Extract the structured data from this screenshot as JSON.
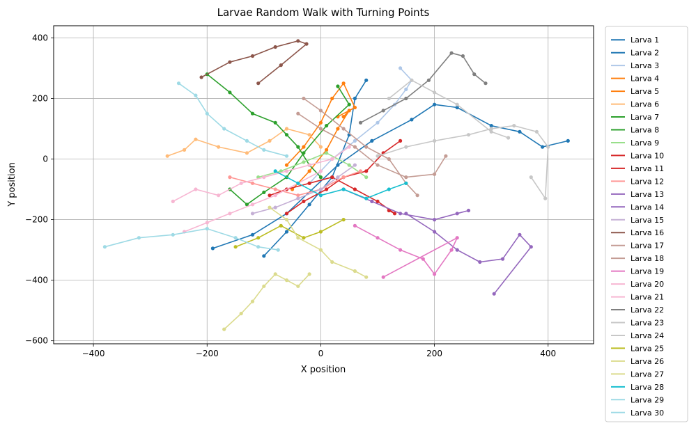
{
  "chart_data": {
    "type": "line",
    "title": "Larvae Random Walk with Turning Points",
    "xlabel": "X position",
    "ylabel": "Y position",
    "xlim": [
      -470,
      480
    ],
    "ylim": [
      -610,
      440
    ],
    "xticks": [
      -400,
      -200,
      0,
      200,
      400
    ],
    "yticks": [
      -600,
      -400,
      -200,
      0,
      200,
      400
    ],
    "xtick_labels": [
      "−400",
      "−200",
      "0",
      "200",
      "400"
    ],
    "ytick_labels": [
      "−600",
      "−400",
      "−200",
      "0",
      "200",
      "400"
    ],
    "grid": true,
    "legend_position": "outside-right",
    "series": [
      {
        "name": "Larva 1",
        "color": "#1f77b4",
        "x": [
          -190,
          -120,
          -60,
          30,
          90,
          160,
          200,
          240,
          300,
          350,
          390,
          435
        ],
        "y": [
          -295,
          -250,
          -180,
          -20,
          60,
          130,
          180,
          170,
          110,
          90,
          40,
          60
        ]
      },
      {
        "name": "Larva 2",
        "color": "#1f77b4",
        "x": [
          -100,
          -60,
          -20,
          20,
          50,
          60,
          80
        ],
        "y": [
          -320,
          -240,
          -150,
          -60,
          80,
          200,
          260
        ]
      },
      {
        "name": "Larva 3",
        "color": "#aec7e8",
        "x": [
          -20,
          20,
          60,
          100,
          130,
          150,
          160,
          140
        ],
        "y": [
          -80,
          0,
          60,
          120,
          180,
          230,
          260,
          300
        ]
      },
      {
        "name": "Larva 4",
        "color": "#ff7f0e",
        "x": [
          -60,
          -30,
          0,
          20,
          40,
          60,
          30
        ],
        "y": [
          -20,
          40,
          120,
          200,
          250,
          170,
          140
        ]
      },
      {
        "name": "Larva 5",
        "color": "#ff7f0e",
        "x": [
          -50,
          -20,
          10,
          30,
          50,
          40
        ],
        "y": [
          -100,
          -40,
          30,
          100,
          160,
          140
        ]
      },
      {
        "name": "Larva 6",
        "color": "#ffbb78",
        "x": [
          -270,
          -240,
          -220,
          -180,
          -130,
          -90,
          -60,
          -20,
          0
        ],
        "y": [
          10,
          30,
          65,
          40,
          20,
          60,
          100,
          80,
          40
        ]
      },
      {
        "name": "Larva 7",
        "color": "#2ca02c",
        "x": [
          -200,
          -160,
          -120,
          -80,
          -60,
          -40,
          -20,
          0
        ],
        "y": [
          280,
          220,
          150,
          120,
          80,
          40,
          -20,
          -60
        ]
      },
      {
        "name": "Larva 8",
        "color": "#2ca02c",
        "x": [
          -160,
          -130,
          -100,
          -60,
          -30,
          10,
          50,
          30
        ],
        "y": [
          -100,
          -150,
          -110,
          -60,
          20,
          110,
          180,
          240
        ]
      },
      {
        "name": "Larva 9",
        "color": "#98df8a",
        "x": [
          -110,
          -70,
          -30,
          10,
          50,
          80
        ],
        "y": [
          -60,
          -40,
          -10,
          20,
          -20,
          -60
        ]
      },
      {
        "name": "Larva 10",
        "color": "#d62728",
        "x": [
          -90,
          -60,
          -20,
          20,
          60,
          100,
          130,
          120
        ],
        "y": [
          -120,
          -100,
          -80,
          -60,
          -100,
          -140,
          -180,
          -170
        ]
      },
      {
        "name": "Larva 11",
        "color": "#d62728",
        "x": [
          -60,
          -30,
          10,
          40,
          80,
          110,
          140
        ],
        "y": [
          -180,
          -140,
          -100,
          -60,
          -40,
          20,
          60
        ]
      },
      {
        "name": "Larva 12",
        "color": "#ff9896",
        "x": [
          -160,
          -120,
          -80,
          -40,
          0,
          40,
          70
        ],
        "y": [
          -60,
          -80,
          -100,
          -120,
          -100,
          -60,
          -40
        ]
      },
      {
        "name": "Larva 13",
        "color": "#9467bd",
        "x": [
          40,
          90,
          140,
          200,
          240,
          260
        ],
        "y": [
          -100,
          -140,
          -180,
          -200,
          -180,
          -170
        ]
      },
      {
        "name": "Larva 14",
        "color": "#9467bd",
        "x": [
          150,
          200,
          240,
          280,
          320,
          350,
          370,
          305
        ],
        "y": [
          -180,
          -240,
          -300,
          -340,
          -330,
          -250,
          -290,
          -445
        ]
      },
      {
        "name": "Larva 15",
        "color": "#c5b0d5",
        "x": [
          -120,
          -80,
          -40,
          0,
          30,
          60
        ],
        "y": [
          -180,
          -160,
          -130,
          -100,
          -60,
          -20
        ]
      },
      {
        "name": "Larva 16",
        "color": "#8c564b",
        "x": [
          -210,
          -160,
          -120,
          -80,
          -40,
          -25,
          -70,
          -110
        ],
        "y": [
          270,
          320,
          340,
          370,
          390,
          380,
          310,
          250
        ]
      },
      {
        "name": "Larva 17",
        "color": "#c49c94",
        "x": [
          -40,
          0,
          60,
          100,
          150,
          200,
          220
        ],
        "y": [
          150,
          100,
          40,
          -20,
          -60,
          -50,
          10
        ]
      },
      {
        "name": "Larva 18",
        "color": "#c49c94",
        "x": [
          -30,
          0,
          40,
          80,
          120,
          150,
          170
        ],
        "y": [
          200,
          160,
          100,
          40,
          0,
          -80,
          -120
        ]
      },
      {
        "name": "Larva 19",
        "color": "#e377c2",
        "x": [
          60,
          100,
          140,
          180,
          200,
          230,
          240,
          110
        ],
        "y": [
          -220,
          -260,
          -300,
          -330,
          -380,
          -300,
          -260,
          -390
        ]
      },
      {
        "name": "Larva 20",
        "color": "#f7b6d2",
        "x": [
          -260,
          -220,
          -180,
          -140,
          -100,
          -60,
          -20,
          20,
          50
        ],
        "y": [
          -140,
          -100,
          -120,
          -80,
          -60,
          -40,
          -20,
          0,
          40
        ]
      },
      {
        "name": "Larva 21",
        "color": "#f7b6d2",
        "x": [
          -240,
          -200,
          -160,
          -120,
          -80,
          -40,
          0
        ],
        "y": [
          -240,
          -210,
          -180,
          -150,
          -120,
          -80,
          -40
        ]
      },
      {
        "name": "Larva 22",
        "color": "#7f7f7f",
        "x": [
          70,
          110,
          150,
          190,
          230,
          250,
          270,
          290
        ],
        "y": [
          120,
          160,
          200,
          260,
          350,
          340,
          280,
          250
        ]
      },
      {
        "name": "Larva 23",
        "color": "#c7c7c7",
        "x": [
          100,
          150,
          200,
          260,
          300,
          340,
          380,
          400,
          395,
          370
        ],
        "y": [
          10,
          40,
          60,
          80,
          100,
          110,
          90,
          40,
          -130,
          -60
        ]
      },
      {
        "name": "Larva 24",
        "color": "#c7c7c7",
        "x": [
          120,
          160,
          200,
          240,
          300,
          330
        ],
        "y": [
          200,
          260,
          220,
          180,
          90,
          70
        ]
      },
      {
        "name": "Larva 25",
        "color": "#bcbd22",
        "x": [
          -150,
          -110,
          -70,
          -30,
          0,
          40
        ],
        "y": [
          -290,
          -260,
          -220,
          -260,
          -240,
          -200
        ]
      },
      {
        "name": "Larva 26",
        "color": "#dbdb8d",
        "x": [
          -90,
          -60,
          -40,
          0,
          20,
          60,
          80
        ],
        "y": [
          -160,
          -200,
          -260,
          -300,
          -340,
          -370,
          -390
        ]
      },
      {
        "name": "Larva 27",
        "color": "#dbdb8d",
        "x": [
          -170,
          -140,
          -120,
          -100,
          -80,
          -60,
          -40,
          -20
        ],
        "y": [
          -562,
          -510,
          -470,
          -420,
          -380,
          -400,
          -420,
          -380
        ]
      },
      {
        "name": "Larva 28",
        "color": "#17becf",
        "x": [
          -80,
          -40,
          0,
          40,
          80,
          120,
          150
        ],
        "y": [
          -40,
          -80,
          -120,
          -100,
          -130,
          -100,
          -80
        ]
      },
      {
        "name": "Larva 29",
        "color": "#9edae5",
        "x": [
          -250,
          -220,
          -200,
          -170,
          -130,
          -100,
          -60
        ],
        "y": [
          250,
          210,
          150,
          100,
          60,
          30,
          10
        ]
      },
      {
        "name": "Larva 30",
        "color": "#9edae5",
        "x": [
          -380,
          -320,
          -260,
          -200,
          -150,
          -110,
          -75
        ],
        "y": [
          -290,
          -260,
          -250,
          -230,
          -260,
          -290,
          -300
        ]
      }
    ]
  }
}
